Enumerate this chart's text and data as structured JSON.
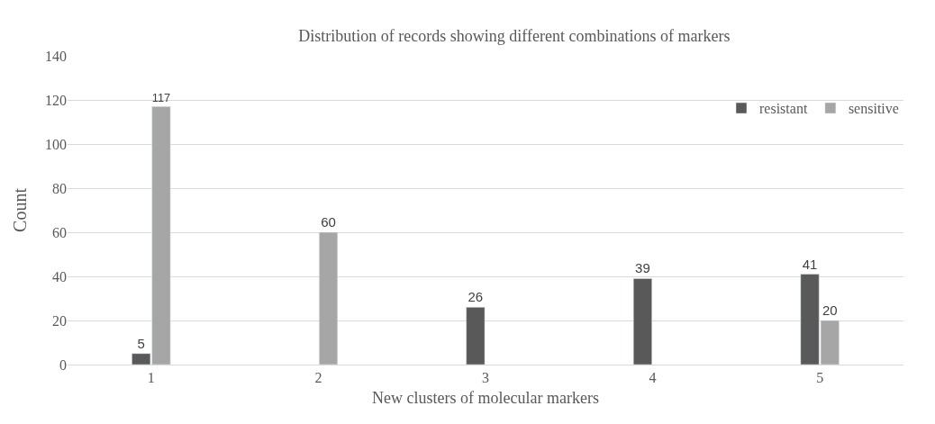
{
  "chart_data": {
    "type": "bar",
    "title": "Distribution of records showing different combinations of markers",
    "xlabel": "New clusters of molecular markers",
    "ylabel": "Count",
    "categories": [
      "1",
      "2",
      "3",
      "4",
      "5"
    ],
    "series": [
      {
        "name": "resistant",
        "color": "#595959",
        "values": [
          5,
          null,
          26,
          39,
          41
        ]
      },
      {
        "name": "sensitive",
        "color": "#a6a6a6",
        "values": [
          117,
          60,
          null,
          null,
          20
        ]
      }
    ],
    "ylim": [
      0,
      140
    ],
    "yticks": [
      0,
      20,
      40,
      60,
      80,
      100,
      120,
      140
    ],
    "grid": "y",
    "legend": "top right",
    "data_labels": true
  }
}
